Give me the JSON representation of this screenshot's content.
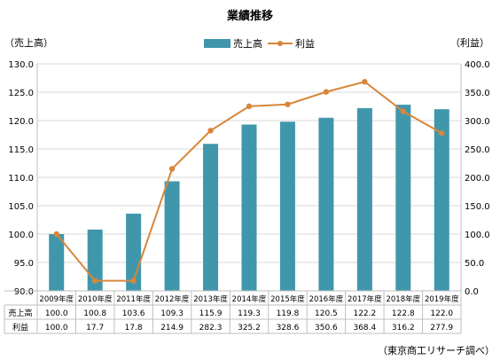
{
  "chart_data": {
    "type": "bar",
    "title": "業績推移",
    "ylabel_left": "（売上高）",
    "ylabel_right": "（利益）",
    "categories": [
      "2009年度",
      "2010年度",
      "2011年度",
      "2012年度",
      "2013年度",
      "2014年度",
      "2015年度",
      "2016年度",
      "2017年度",
      "2018年度",
      "2019年度"
    ],
    "series": [
      {
        "name": "売上高",
        "kind": "bar",
        "axis": "left",
        "color": "#4097ab",
        "values": [
          100.0,
          100.8,
          103.6,
          109.3,
          115.9,
          119.3,
          119.8,
          120.5,
          122.2,
          122.8,
          122.0
        ]
      },
      {
        "name": "利益",
        "kind": "line",
        "axis": "right",
        "color": "#d8863b",
        "values": [
          100.0,
          17.7,
          17.8,
          214.9,
          282.3,
          325.2,
          328.6,
          350.6,
          368.4,
          316.2,
          277.9
        ]
      }
    ],
    "ylim_left": [
      90,
      130
    ],
    "yticks_left": [
      "90.0",
      "95.0",
      "100.0",
      "105.0",
      "110.0",
      "115.0",
      "120.0",
      "125.0",
      "130.0"
    ],
    "ylim_right": [
      0,
      400
    ],
    "yticks_right": [
      "0.0",
      "50.0",
      "100.0",
      "150.0",
      "200.0",
      "250.0",
      "300.0",
      "350.0",
      "400.0"
    ],
    "table_rows": [
      {
        "label": "売上高",
        "values": [
          "100.0",
          "100.8",
          "103.6",
          "109.3",
          "115.9",
          "119.3",
          "119.8",
          "120.5",
          "122.2",
          "122.8",
          "122.0"
        ]
      },
      {
        "label": "利益",
        "values": [
          "100.0",
          "17.7",
          "17.8",
          "214.9",
          "282.3",
          "325.2",
          "328.6",
          "350.6",
          "368.4",
          "316.2",
          "277.9"
        ]
      }
    ],
    "legend_position": "top-center",
    "grid": true,
    "source_note": "（東京商工リサーチ調べ）"
  }
}
